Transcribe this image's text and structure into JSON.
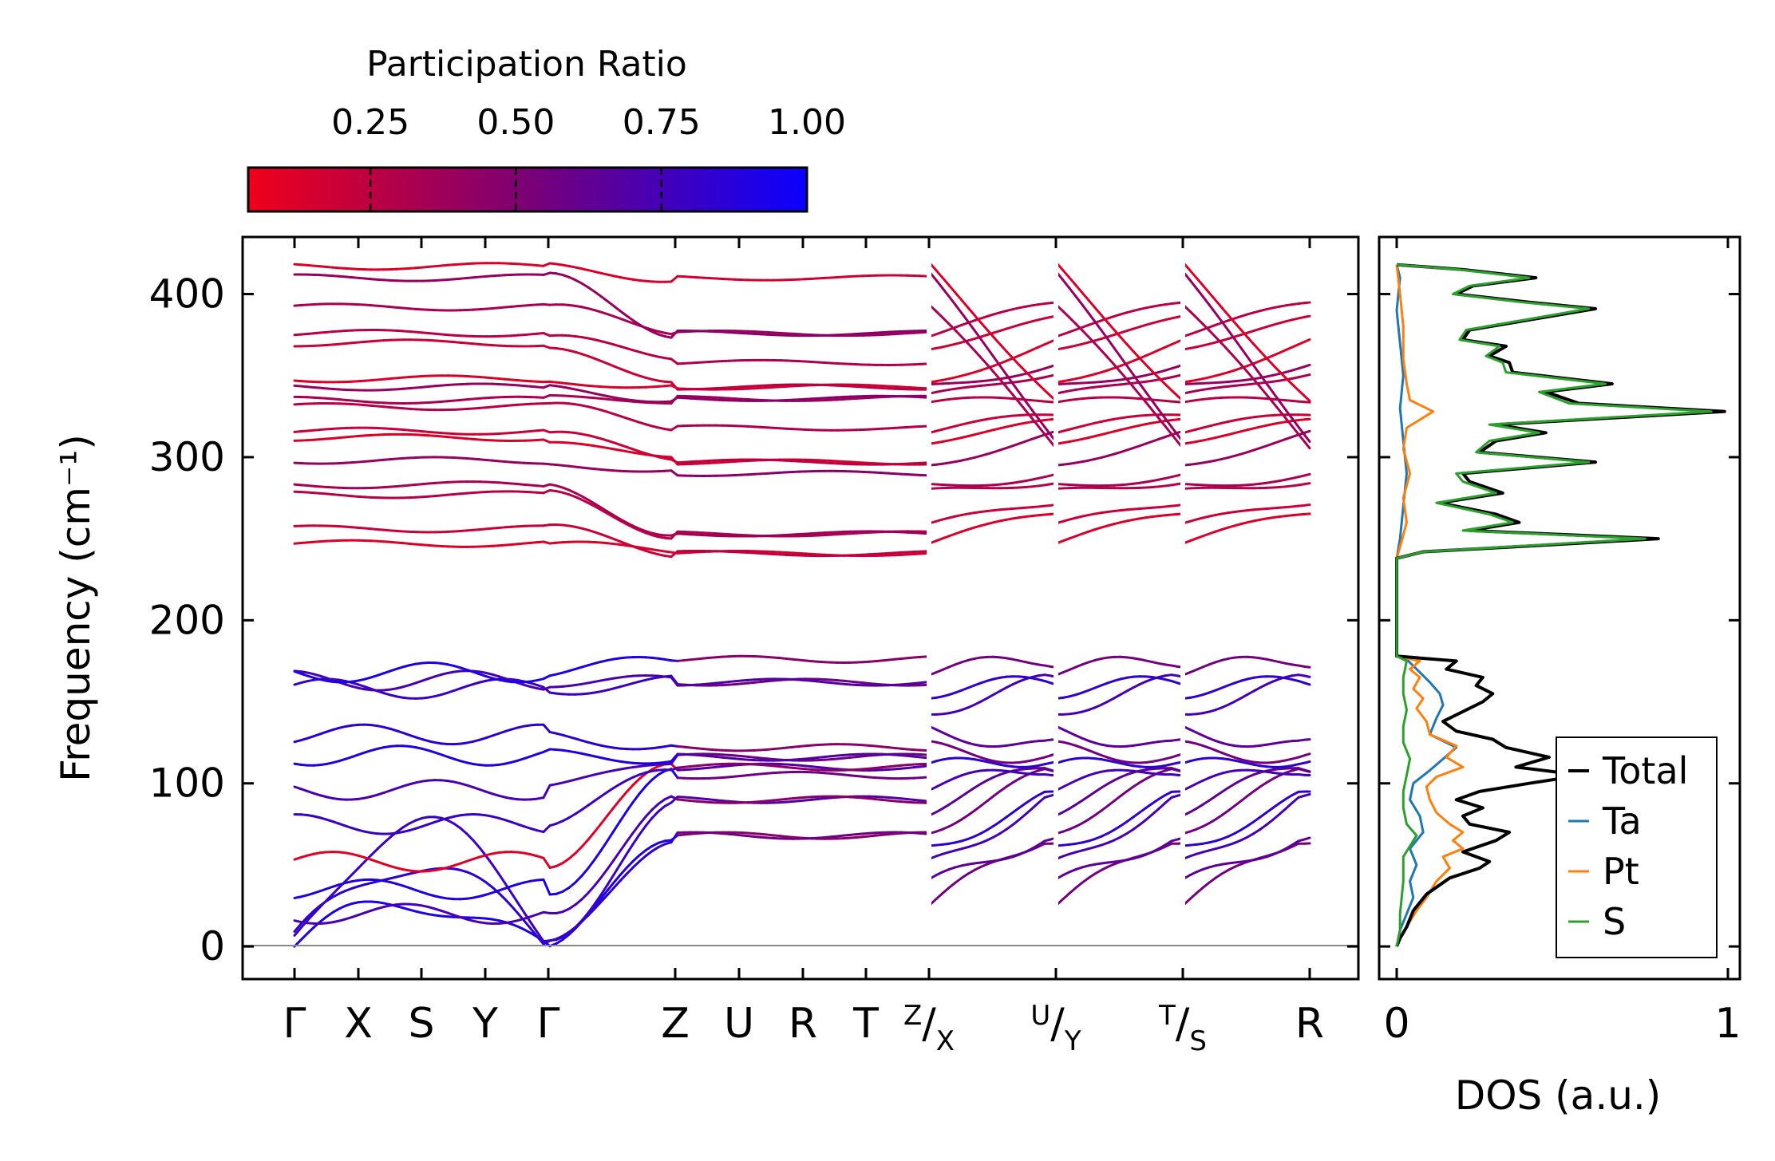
{
  "chart_data": [
    {
      "type": "line",
      "title": "",
      "xlabel": "",
      "ylabel": "Frequency (cm⁻¹)",
      "ylim": [
        -20,
        435
      ],
      "yticks": [
        0,
        100,
        200,
        300,
        400
      ],
      "x_tick_labels": [
        "Γ",
        "X",
        "S",
        "Y",
        "Γ",
        "Z",
        "U",
        "R",
        "T",
        "Z/X",
        "U/Y",
        "T/S",
        "R"
      ],
      "path_segments": [
        [
          "Γ",
          "X",
          "S",
          "Y",
          "Γ",
          "Z",
          "U",
          "R",
          "T",
          "Z"
        ],
        [
          "X",
          "U"
        ],
        [
          "Y",
          "T"
        ],
        [
          "S",
          "R"
        ]
      ],
      "gamma_frequencies_high": [
        247,
        256,
        277,
        283,
        298,
        312,
        316,
        331,
        335,
        343,
        348,
        370,
        376,
        392,
        410,
        417
      ],
      "gamma_frequencies_low": [
        0,
        0,
        0,
        20,
        35,
        52,
        75,
        96,
        117,
        130,
        158,
        163,
        168
      ],
      "flat_frequencies_high": [
        241,
        253,
        290,
        297,
        318,
        336,
        343,
        358,
        376,
        410
      ],
      "flat_frequencies_low": [
        68,
        90,
        105,
        110,
        116,
        122,
        162,
        176
      ],
      "gap_range": [
        178,
        238
      ],
      "colorbar": {
        "label": "Participation Ratio",
        "ticks": [
          "0.25",
          "0.50",
          "0.75",
          "1.00"
        ],
        "tick_values": [
          0.25,
          0.5,
          0.75,
          1.0
        ],
        "range": [
          0.04,
          1.0
        ],
        "color_low": "#f0001a",
        "color_mid": "#7a0075",
        "color_high": "#0a00ff"
      }
    },
    {
      "type": "line",
      "title": "",
      "xlabel": "DOS (a.u.)",
      "ylabel": "",
      "xlim": [
        0,
        1
      ],
      "xticks": [
        "0",
        "1"
      ],
      "legend": [
        "Total",
        "Ta",
        "Pt",
        "S"
      ],
      "legend_location": "lower-right",
      "series": [
        {
          "name": "Total",
          "color": "#000000",
          "points": [
            [
              0,
              0
            ],
            [
              0.01,
              5
            ],
            [
              0.03,
              12
            ],
            [
              0.05,
              22
            ],
            [
              0.09,
              32
            ],
            [
              0.16,
              42
            ],
            [
              0.25,
              48
            ],
            [
              0.28,
              52
            ],
            [
              0.2,
              58
            ],
            [
              0.3,
              65
            ],
            [
              0.34,
              70
            ],
            [
              0.22,
              75
            ],
            [
              0.2,
              80
            ],
            [
              0.26,
              85
            ],
            [
              0.18,
              90
            ],
            [
              0.25,
              95
            ],
            [
              0.4,
              100
            ],
            [
              0.56,
              105
            ],
            [
              0.36,
              110
            ],
            [
              0.46,
              116
            ],
            [
              0.33,
              122
            ],
            [
              0.29,
              127
            ],
            [
              0.18,
              132
            ],
            [
              0.14,
              138
            ],
            [
              0.21,
              145
            ],
            [
              0.26,
              150
            ],
            [
              0.29,
              155
            ],
            [
              0.24,
              160
            ],
            [
              0.26,
              165
            ],
            [
              0.15,
              170
            ],
            [
              0.18,
              175
            ],
            [
              0.0,
              178
            ],
            [
              0.0,
              238
            ],
            [
              0.08,
              242
            ],
            [
              0.35,
              245
            ],
            [
              0.79,
              250
            ],
            [
              0.22,
              255
            ],
            [
              0.37,
              260
            ],
            [
              0.3,
              265
            ],
            [
              0.13,
              272
            ],
            [
              0.32,
              278
            ],
            [
              0.22,
              285
            ],
            [
              0.2,
              290
            ],
            [
              0.6,
              297
            ],
            [
              0.25,
              303
            ],
            [
              0.3,
              310
            ],
            [
              0.45,
              315
            ],
            [
              0.3,
              320
            ],
            [
              0.99,
              328
            ],
            [
              0.55,
              333
            ],
            [
              0.45,
              340
            ],
            [
              0.65,
              345
            ],
            [
              0.35,
              352
            ],
            [
              0.34,
              358
            ],
            [
              0.28,
              362
            ],
            [
              0.33,
              368
            ],
            [
              0.2,
              372
            ],
            [
              0.22,
              378
            ],
            [
              0.6,
              391
            ],
            [
              0.4,
              395
            ],
            [
              0.18,
              400
            ],
            [
              0.23,
              405
            ],
            [
              0.42,
              410
            ],
            [
              0.2,
              415
            ],
            [
              0.0,
              418
            ]
          ]
        },
        {
          "name": "Ta",
          "color": "#1f77b4",
          "points": [
            [
              0,
              0
            ],
            [
              0.01,
              10
            ],
            [
              0.03,
              20
            ],
            [
              0.05,
              30
            ],
            [
              0.04,
              40
            ],
            [
              0.06,
              50
            ],
            [
              0.04,
              60
            ],
            [
              0.08,
              70
            ],
            [
              0.07,
              80
            ],
            [
              0.04,
              90
            ],
            [
              0.05,
              100
            ],
            [
              0.1,
              108
            ],
            [
              0.14,
              115
            ],
            [
              0.18,
              122
            ],
            [
              0.1,
              130
            ],
            [
              0.12,
              140
            ],
            [
              0.14,
              148
            ],
            [
              0.13,
              155
            ],
            [
              0.1,
              162
            ],
            [
              0.06,
              170
            ],
            [
              0.03,
              176
            ],
            [
              0.0,
              178
            ],
            [
              0.0,
              238
            ],
            [
              0.01,
              250
            ],
            [
              0.02,
              270
            ],
            [
              0.03,
              290
            ],
            [
              0.02,
              310
            ],
            [
              0.01,
              330
            ],
            [
              0.02,
              350
            ],
            [
              0.01,
              370
            ],
            [
              0.0,
              390
            ],
            [
              0.01,
              410
            ],
            [
              0.0,
              418
            ]
          ]
        },
        {
          "name": "Pt",
          "color": "#ff7f0e",
          "points": [
            [
              0,
              0
            ],
            [
              0.01,
              5
            ],
            [
              0.03,
              12
            ],
            [
              0.06,
              22
            ],
            [
              0.09,
              30
            ],
            [
              0.12,
              40
            ],
            [
              0.16,
              48
            ],
            [
              0.14,
              55
            ],
            [
              0.2,
              60
            ],
            [
              0.17,
              65
            ],
            [
              0.2,
              70
            ],
            [
              0.16,
              75
            ],
            [
              0.12,
              82
            ],
            [
              0.1,
              90
            ],
            [
              0.09,
              98
            ],
            [
              0.12,
              104
            ],
            [
              0.2,
              110
            ],
            [
              0.15,
              116
            ],
            [
              0.18,
              123
            ],
            [
              0.1,
              130
            ],
            [
              0.09,
              138
            ],
            [
              0.06,
              146
            ],
            [
              0.08,
              152
            ],
            [
              0.05,
              158
            ],
            [
              0.07,
              165
            ],
            [
              0.04,
              170
            ],
            [
              0.07,
              175
            ],
            [
              0.0,
              178
            ],
            [
              0.0,
              238
            ],
            [
              0.01,
              245
            ],
            [
              0.03,
              260
            ],
            [
              0.02,
              275
            ],
            [
              0.04,
              290
            ],
            [
              0.02,
              305
            ],
            [
              0.03,
              318
            ],
            [
              0.11,
              328
            ],
            [
              0.04,
              335
            ],
            [
              0.03,
              345
            ],
            [
              0.02,
              360
            ],
            [
              0.02,
              380
            ],
            [
              0.01,
              400
            ],
            [
              0.0,
              418
            ]
          ]
        },
        {
          "name": "S",
          "color": "#2ca02c",
          "points": [
            [
              0,
              0
            ],
            [
              0.01,
              10
            ],
            [
              0.01,
              20
            ],
            [
              0.02,
              40
            ],
            [
              0.02,
              55
            ],
            [
              0.06,
              68
            ],
            [
              0.03,
              75
            ],
            [
              0.02,
              85
            ],
            [
              0.02,
              95
            ],
            [
              0.03,
              105
            ],
            [
              0.04,
              115
            ],
            [
              0.02,
              125
            ],
            [
              0.02,
              135
            ],
            [
              0.03,
              145
            ],
            [
              0.02,
              155
            ],
            [
              0.02,
              165
            ],
            [
              0.03,
              175
            ],
            [
              0.0,
              178
            ],
            [
              0.0,
              238
            ],
            [
              0.08,
              242
            ],
            [
              0.33,
              245
            ],
            [
              0.75,
              250
            ],
            [
              0.2,
              255
            ],
            [
              0.35,
              260
            ],
            [
              0.28,
              265
            ],
            [
              0.12,
              272
            ],
            [
              0.3,
              278
            ],
            [
              0.2,
              285
            ],
            [
              0.18,
              290
            ],
            [
              0.58,
              297
            ],
            [
              0.24,
              303
            ],
            [
              0.28,
              310
            ],
            [
              0.43,
              315
            ],
            [
              0.28,
              320
            ],
            [
              0.95,
              328
            ],
            [
              0.52,
              333
            ],
            [
              0.43,
              340
            ],
            [
              0.63,
              345
            ],
            [
              0.33,
              352
            ],
            [
              0.32,
              358
            ],
            [
              0.27,
              362
            ],
            [
              0.31,
              368
            ],
            [
              0.19,
              372
            ],
            [
              0.21,
              378
            ],
            [
              0.58,
              391
            ],
            [
              0.38,
              395
            ],
            [
              0.17,
              400
            ],
            [
              0.22,
              405
            ],
            [
              0.4,
              410
            ],
            [
              0.19,
              415
            ],
            [
              0.0,
              418
            ]
          ]
        }
      ]
    }
  ]
}
